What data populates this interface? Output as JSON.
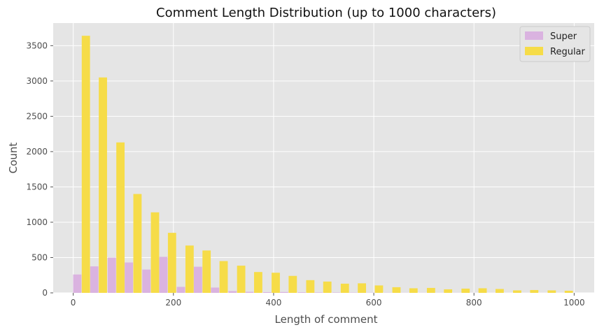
{
  "chart_data": {
    "type": "bar",
    "title": "Comment Length Distribution (up to 1000 characters)",
    "xlabel": "Length of comment",
    "ylabel": "Count",
    "xlim": [
      -40,
      1040
    ],
    "ylim": [
      0,
      3820
    ],
    "xticks": [
      0,
      200,
      400,
      600,
      800,
      1000
    ],
    "yticks": [
      0,
      500,
      1000,
      1500,
      2000,
      2500,
      3000,
      3500
    ],
    "bin_width": 34.4,
    "x": [
      17,
      51,
      86,
      120,
      155,
      189,
      224,
      258,
      292,
      327,
      361,
      396,
      430,
      465,
      499,
      534,
      568,
      602,
      637,
      671,
      706,
      740,
      775,
      809,
      843,
      878,
      912,
      947,
      981
    ],
    "series": [
      {
        "name": "Super",
        "color": "#dab3e0",
        "values": [
          260,
          375,
          500,
          430,
          330,
          510,
          85,
          370,
          75,
          25,
          15,
          10,
          12,
          8,
          6,
          5,
          4,
          3,
          3,
          2,
          2,
          2,
          2,
          1,
          1,
          1,
          1,
          1,
          1
        ]
      },
      {
        "name": "Regular",
        "color": "#f6dc48",
        "values": [
          3640,
          3050,
          2130,
          1400,
          1140,
          850,
          670,
          600,
          450,
          385,
          295,
          285,
          240,
          180,
          160,
          130,
          135,
          105,
          80,
          65,
          70,
          50,
          60,
          65,
          55,
          35,
          40,
          35,
          30
        ]
      }
    ],
    "legend": {
      "position": "top-right",
      "entries": [
        "Super",
        "Regular"
      ]
    },
    "grid": true,
    "background": "#e5e5e5",
    "grid_color": "#ffffff"
  }
}
